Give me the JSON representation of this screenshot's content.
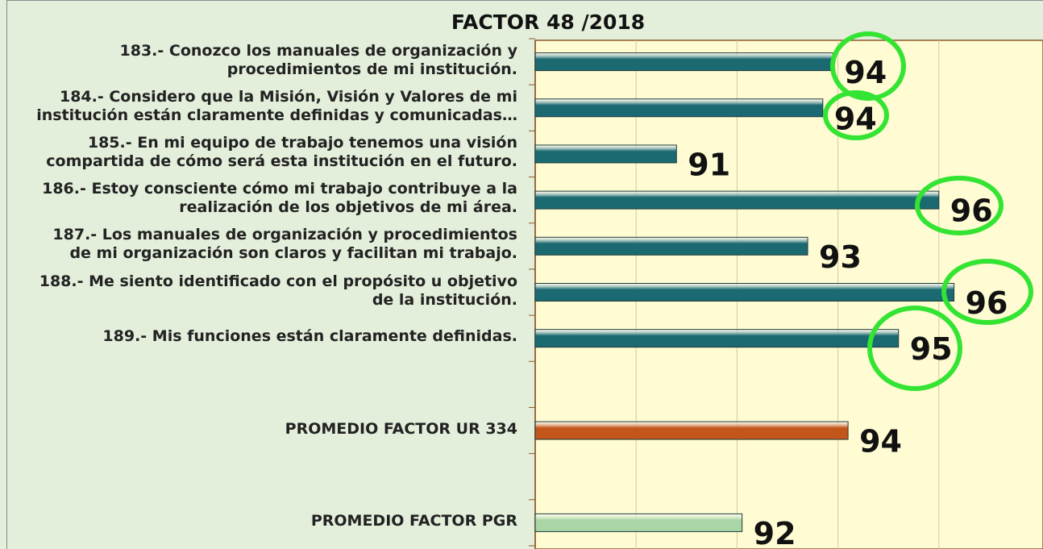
{
  "chart_data": {
    "type": "barh",
    "title": "FACTOR 48 /2018",
    "categories": [
      "183.- Conozco los manuales de organización y\nprocedimientos de mi institución.",
      "184.- Considero que la Misión, Visión y Valores de mi\ninstitución están claramente definidas y comunicadas…",
      "185.- En mi equipo de trabajo tenemos una visión\ncompartida de cómo será esta institución en el futuro.",
      "186.- Estoy consciente cómo mi trabajo contribuye a la\nrealización de los objetivos de mi área.",
      "187.- Los manuales de organización y procedimientos\nde mi organización son claros y facilitan mi trabajo.",
      "188.- Me siento identificado con el propósito u objetivo\nde la institución.",
      "189.- Mis funciones están claramente definidas.",
      null,
      "PROMEDIO FACTOR UR 334",
      null,
      "PROMEDIO FACTOR PGR"
    ],
    "values": [
      93.9,
      93.7,
      90.8,
      96.0,
      93.4,
      96.3,
      95.2,
      null,
      94.2,
      null,
      92.1
    ],
    "value_labels": [
      "94",
      "94",
      "91",
      "96",
      "93",
      "96",
      "95",
      null,
      "94",
      null,
      "92"
    ],
    "colors": [
      "#1b6a72",
      "#1b6a72",
      "#1b6a72",
      "#1b6a72",
      "#1b6a72",
      "#1b6a72",
      "#1b6a72",
      null,
      "#c4561b",
      null,
      "#a9d6a4"
    ],
    "xlim": [
      88,
      98
    ],
    "xticks": [
      88,
      90,
      92,
      94,
      96,
      98
    ],
    "grid": true
  }
}
